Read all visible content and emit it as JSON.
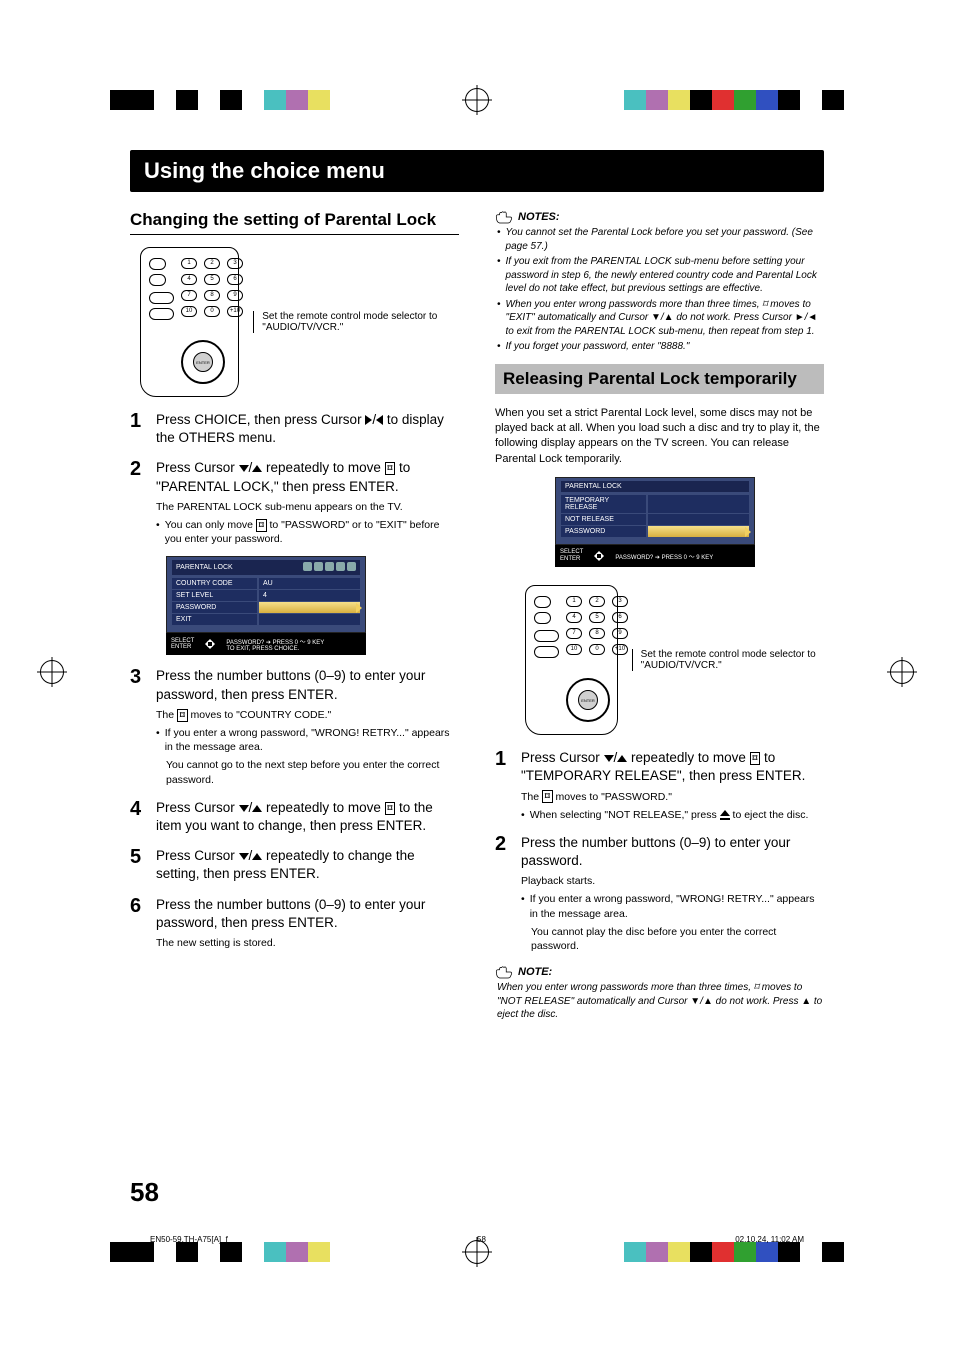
{
  "title": "Using the choice menu",
  "pageNumber": "58",
  "colorBars": {
    "left": [
      "#000000",
      "#000000",
      "#ffffff",
      "#000000",
      "#ffffff",
      "#000000",
      "#ffffff",
      "#4ac0c0",
      "#b070b0",
      "#e8e060"
    ],
    "right": [
      "#4ac0c0",
      "#b070b0",
      "#e8e060",
      "#000000",
      "#e03030",
      "#30a030",
      "#3050c0",
      "#000000",
      "#ffffff",
      "#000000"
    ]
  },
  "left": {
    "sectionTitle": "Changing the setting of Parental Lock",
    "remoteCaption": "Set the remote control mode selector to \"AUDIO/TV/VCR.\"",
    "steps": [
      {
        "n": "1",
        "text_a": "Press CHOICE, then press Cursor ",
        "text_b": " to display the OTHERS menu."
      },
      {
        "n": "2",
        "text_a": "Press Cursor ",
        "text_b": " repeatedly to move ",
        "text_c": " to \"PARENTAL LOCK,\" then press ENTER.",
        "sub1": "The PARENTAL LOCK sub-menu appears on the TV.",
        "sub2_a": "You can only move ",
        "sub2_b": " to \"PASSWORD\" or to \"EXIT\" before you enter your password."
      },
      {
        "n": "3",
        "text": "Press the number buttons (0–9) to enter your password, then press ENTER.",
        "sub1_a": "The ",
        "sub1_b": " moves to \"COUNTRY CODE.\"",
        "sub2": "If you enter a wrong password, \"WRONG! RETRY...\" appears in the message area.",
        "sub3": "You cannot go to the next step before you enter the correct password."
      },
      {
        "n": "4",
        "text_a": "Press Cursor ",
        "text_b": " repeatedly to move ",
        "text_c": " to the item you want to change, then press ENTER."
      },
      {
        "n": "5",
        "text_a": "Press Cursor ",
        "text_b": " repeatedly to change the setting, then press ENTER."
      },
      {
        "n": "6",
        "text": "Press the number buttons (0–9) to enter your password, then press ENTER.",
        "sub1": "The new setting is stored."
      }
    ],
    "screenshot": {
      "title": "PARENTAL LOCK",
      "rows": [
        {
          "label": "COUNTRY CODE",
          "value": "AU"
        },
        {
          "label": "SET LEVEL",
          "value": "4"
        },
        {
          "label": "PASSWORD",
          "value": "",
          "selected": true
        },
        {
          "label": "EXIT",
          "value": ""
        }
      ],
      "footerSelect": "SELECT",
      "footerEnter": "ENTER",
      "footerText1": "PASSWORD? ➔ PRESS 0 ～ 9 KEY",
      "footerText2": "TO EXIT, PRESS CHOICE."
    }
  },
  "right": {
    "notesHead": "NOTES:",
    "notes": [
      "You cannot set the Parental Lock before you set your password. (See page 57.)",
      "If you exit from the PARENTAL LOCK sub-menu before setting your password in step 6, the newly entered country code and Parental Lock level do not take effect, but previous settings are effective.",
      "When you enter wrong passwords more than three times, ⌑ moves to \"EXIT\" automatically and Cursor ▼/▲ do not work. Press Cursor ►/◄ to exit from the PARENTAL LOCK sub-menu, then repeat from step 1.",
      "If you forget your password, enter \"8888.\""
    ],
    "sectionTitle": "Releasing Parental Lock temporarily",
    "intro": "When you set a strict Parental Lock level, some discs may not be played back at all. When you load such a disc and try to play it, the following display appears on the TV screen. You can release Parental Lock temporarily.",
    "screenshot": {
      "title": "PARENTAL LOCK",
      "rows": [
        {
          "label": "TEMPORARY RELEASE",
          "value": ""
        },
        {
          "label": "NOT RELEASE",
          "value": ""
        },
        {
          "label": "PASSWORD",
          "value": "",
          "selected": true
        }
      ],
      "footerSelect": "SELECT",
      "footerEnter": "ENTER",
      "footerText1": "PASSWORD? ➔ PRESS 0 ～ 9 KEY"
    },
    "remoteCaption": "Set the remote control mode selector to \"AUDIO/TV/VCR.\"",
    "steps": [
      {
        "n": "1",
        "text_a": "Press Cursor ",
        "text_b": " repeatedly to move ",
        "text_c": " to \"TEMPORARY RELEASE\", then press ENTER.",
        "sub1_a": "The ",
        "sub1_b": " moves to \"PASSWORD.\"",
        "sub2_a": "When selecting \"NOT RELEASE,\" press ",
        "sub2_b": " to eject the disc."
      },
      {
        "n": "2",
        "text": "Press the number buttons (0–9) to enter your password.",
        "sub1": "Playback starts.",
        "sub2": "If you enter a wrong password, \"WRONG! RETRY...\" appears in the message area.",
        "sub3": "You cannot play the disc before you enter the correct password."
      }
    ],
    "noteHead": "NOTE:",
    "note": "When you enter wrong passwords more than three times, ⌑ moves to \"NOT RELEASE\" automatically and Cursor ▼/▲ do not work. Press ▲ to eject the disc."
  },
  "footer": {
    "left": "EN50-59.TH-A75[A]_f",
    "mid": "58",
    "right": "02.10.24, 11:02 AM"
  }
}
